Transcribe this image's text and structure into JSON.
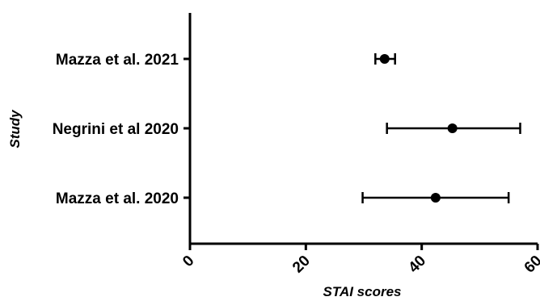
{
  "chart_data": {
    "type": "scatter",
    "subtype": "forest-plot",
    "xlabel": "STAI scores",
    "ylabel": "Study",
    "xlim": [
      0,
      60
    ],
    "xticks": [
      "0",
      "20",
      "40",
      "60"
    ],
    "grid": false,
    "legend": "none",
    "studies": [
      {
        "label": "Mazza et al. 2021",
        "mean": 33.6,
        "lower": 32.0,
        "upper": 35.4
      },
      {
        "label": "Negrini et al 2020",
        "mean": 45.3,
        "lower": 34.0,
        "upper": 57.0
      },
      {
        "label": "Mazza et al. 2020",
        "mean": 42.4,
        "lower": 29.8,
        "upper": 55.0
      }
    ]
  }
}
